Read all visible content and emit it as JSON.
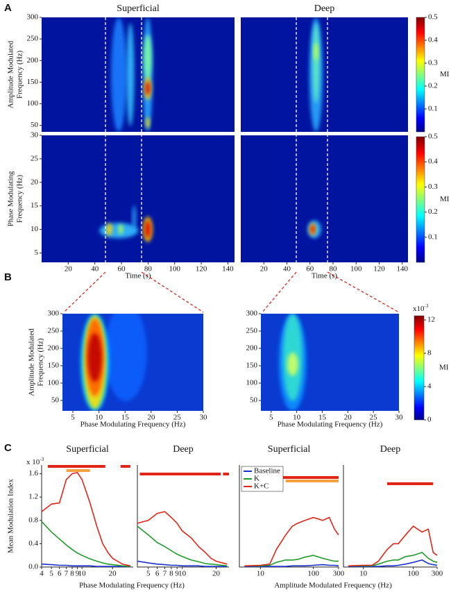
{
  "panel_labels": [
    "A",
    "B",
    "C"
  ],
  "chart_data": [
    {
      "type": "heatmap",
      "title": "Superficial",
      "ylabel": [
        "Amplitude Modulated",
        "Frequency (Hz)"
      ],
      "xlim": [
        0,
        145
      ],
      "ylim": [
        35,
        300
      ],
      "yticks": [
        50,
        100,
        150,
        200,
        250,
        300
      ]
    },
    {
      "type": "heatmap",
      "title": "Deep",
      "xlim": [
        0,
        145
      ],
      "ylim": [
        35,
        300
      ]
    },
    {
      "type": "heatmap",
      "ylabel": [
        "Phase Modulating",
        "Frequency (Hz)"
      ],
      "xlabel": "Time (s)",
      "xlim": [
        0,
        145
      ],
      "ylim": [
        3,
        30
      ],
      "xticks": [
        20,
        40,
        60,
        80,
        100,
        120,
        140
      ],
      "yticks": [
        5,
        10,
        15,
        20,
        25,
        30
      ]
    },
    {
      "type": "heatmap",
      "xlabel": "Time (s)",
      "xlim": [
        0,
        145
      ],
      "ylim": [
        3,
        30
      ],
      "xticks": [
        20,
        40,
        60,
        80,
        100,
        120,
        140
      ]
    },
    {
      "type": "colorbar",
      "label": "MI",
      "ylim": [
        0,
        0.5
      ],
      "yticks": [
        0.1,
        0.2,
        0.3,
        0.4,
        0.5
      ]
    },
    {
      "type": "colorbar",
      "label": "MI",
      "ylim": [
        0,
        0.5
      ],
      "yticks": [
        0.1,
        0.2,
        0.3,
        0.4,
        0.5
      ]
    },
    {
      "type": "heatmap",
      "ylabel": [
        "Amplitude Modulated",
        "Frequency (Hz)"
      ],
      "xlabel": "Phase Modulating Frequency (Hz)",
      "xlim": [
        3,
        30
      ],
      "ylim": [
        20,
        300
      ],
      "xticks": [
        5,
        10,
        15,
        20,
        25,
        30
      ],
      "yticks": [
        50,
        100,
        150,
        200,
        250,
        300
      ]
    },
    {
      "type": "heatmap",
      "xlabel": "Phase Modulating Frequency (Hz)",
      "xlim": [
        3,
        30
      ],
      "ylim": [
        20,
        300
      ],
      "xticks": [
        5,
        10,
        15,
        20,
        25,
        30
      ],
      "yticks": [
        50,
        100,
        150,
        200,
        250,
        300
      ]
    },
    {
      "type": "colorbar",
      "label": "MI",
      "exponent": {
        "base": "x10",
        "power": "-3"
      },
      "ylim": [
        0,
        12.5
      ],
      "yticks": [
        0,
        4,
        8,
        12
      ]
    },
    {
      "type": "line",
      "title": "Superficial",
      "ylabel": "Mean Modulation Index",
      "exponent": {
        "base": "x 10",
        "power": "-3"
      },
      "xlabel": "Phase Modulating Frequency (Hz)",
      "xscale": "log",
      "x": [
        4,
        5,
        6,
        7,
        8,
        9,
        10,
        12,
        14,
        16,
        18,
        20,
        25,
        30
      ],
      "xlim": [
        4,
        32
      ],
      "ylim": [
        0,
        1.75
      ],
      "xticks": [
        4,
        5,
        6,
        7,
        8,
        9,
        10,
        20
      ],
      "yticks": [
        {
          "value": 0,
          "label": "0.0"
        },
        0.4,
        0.8,
        1.2,
        1.6
      ],
      "series": [
        {
          "color": "#1a2fd0",
          "values": [
            0.05,
            0.04,
            0.03,
            0.03,
            0.02,
            0.02,
            0.02,
            0.02,
            0.01,
            0.01,
            0.01,
            0.01,
            0.01,
            0.01
          ]
        },
        {
          "color": "#1f9a2a",
          "values": [
            0.78,
            0.6,
            0.48,
            0.38,
            0.3,
            0.24,
            0.2,
            0.14,
            0.1,
            0.07,
            0.05,
            0.04,
            0.02,
            0.01
          ]
        },
        {
          "color": "#e02418",
          "values": [
            0.95,
            1.08,
            1.1,
            1.5,
            1.6,
            1.62,
            1.5,
            1.1,
            0.7,
            0.4,
            0.25,
            0.15,
            0.05,
            0.02
          ]
        }
      ],
      "significance": [
        {
          "color": "#e02418",
          "x": [
            4.6,
            17
          ]
        },
        {
          "color": "#e02418",
          "x": [
            24,
            30
          ]
        },
        {
          "color": "#f4a040",
          "x": [
            7,
            12
          ]
        }
      ]
    },
    {
      "type": "line",
      "title": "Deep",
      "xscale": "log",
      "x": [
        4,
        5,
        6,
        7,
        8,
        9,
        10,
        12,
        14,
        16,
        18,
        20,
        25
      ],
      "xlim": [
        4,
        26
      ],
      "ylim": [
        0,
        1.75
      ],
      "xticks": [
        5,
        6,
        7,
        8,
        9,
        10,
        20
      ],
      "series": [
        {
          "color": "#1a2fd0",
          "values": [
            0.1,
            0.07,
            0.05,
            0.04,
            0.03,
            0.03,
            0.02,
            0.02,
            0.02,
            0.01,
            0.01,
            0.01,
            0.01
          ]
        },
        {
          "color": "#1f9a2a",
          "values": [
            0.7,
            0.55,
            0.42,
            0.35,
            0.28,
            0.22,
            0.18,
            0.12,
            0.09,
            0.06,
            0.05,
            0.04,
            0.02
          ]
        },
        {
          "color": "#e02418",
          "values": [
            0.75,
            0.8,
            0.92,
            0.95,
            0.85,
            0.75,
            0.62,
            0.5,
            0.35,
            0.25,
            0.15,
            0.1,
            0.05
          ]
        }
      ],
      "significance": [
        {
          "color": "#e02418",
          "x": [
            4.2,
            22
          ]
        },
        {
          "color": "#e02418",
          "x": [
            23,
            26
          ]
        }
      ]
    },
    {
      "type": "line",
      "title": "Superficial",
      "xlabel": "Amplitude Modulated Frequency (Hz)",
      "xscale": "log",
      "legend": "upper left",
      "x": [
        5,
        10,
        15,
        20,
        30,
        40,
        50,
        70,
        100,
        150,
        200,
        250,
        300
      ],
      "xlim": [
        4,
        300
      ],
      "ylim": [
        0,
        1.75
      ],
      "xticks": [
        10,
        100,
        300
      ],
      "series": [
        {
          "name": "Baseline",
          "color": "#1a2fd0",
          "values": [
            0.01,
            0.01,
            0.01,
            0.01,
            0.01,
            0.02,
            0.02,
            0.02,
            0.03,
            0.04,
            0.03,
            0.03,
            0.02
          ]
        },
        {
          "name": "K",
          "color": "#1f9a2a",
          "values": [
            0.02,
            0.02,
            0.03,
            0.08,
            0.12,
            0.12,
            0.13,
            0.17,
            0.2,
            0.15,
            0.12,
            0.1,
            0.1
          ]
        },
        {
          "name": "K+C",
          "color": "#e02418",
          "values": [
            0.02,
            0.03,
            0.05,
            0.3,
            0.55,
            0.7,
            0.75,
            0.8,
            0.85,
            0.8,
            0.85,
            0.65,
            0.55
          ]
        }
      ],
      "significance": [
        {
          "color": "#e02418",
          "x": [
            20,
            300
          ]
        },
        {
          "color": "#f4a040",
          "x": [
            30,
            300
          ]
        }
      ]
    },
    {
      "type": "line",
      "title": "Deep",
      "xscale": "log",
      "x": [
        5,
        10,
        15,
        20,
        30,
        40,
        50,
        70,
        100,
        150,
        200,
        250,
        300
      ],
      "xlim": [
        4,
        300
      ],
      "ylim": [
        0,
        1.75
      ],
      "xticks": [
        10,
        100,
        300
      ],
      "series": [
        {
          "color": "#1a2fd0",
          "values": [
            0.01,
            0.01,
            0.01,
            0.01,
            0.02,
            0.02,
            0.03,
            0.05,
            0.08,
            0.12,
            0.06,
            0.04,
            0.03
          ]
        },
        {
          "color": "#1f9a2a",
          "values": [
            0.02,
            0.02,
            0.02,
            0.05,
            0.1,
            0.12,
            0.12,
            0.18,
            0.2,
            0.25,
            0.15,
            0.1,
            0.08
          ]
        },
        {
          "color": "#e02418",
          "values": [
            0.02,
            0.03,
            0.03,
            0.1,
            0.3,
            0.4,
            0.4,
            0.55,
            0.7,
            0.6,
            0.65,
            0.25,
            0.2
          ]
        }
      ],
      "significance": [
        {
          "color": "#e02418",
          "x": [
            30,
            250
          ]
        }
      ]
    }
  ]
}
